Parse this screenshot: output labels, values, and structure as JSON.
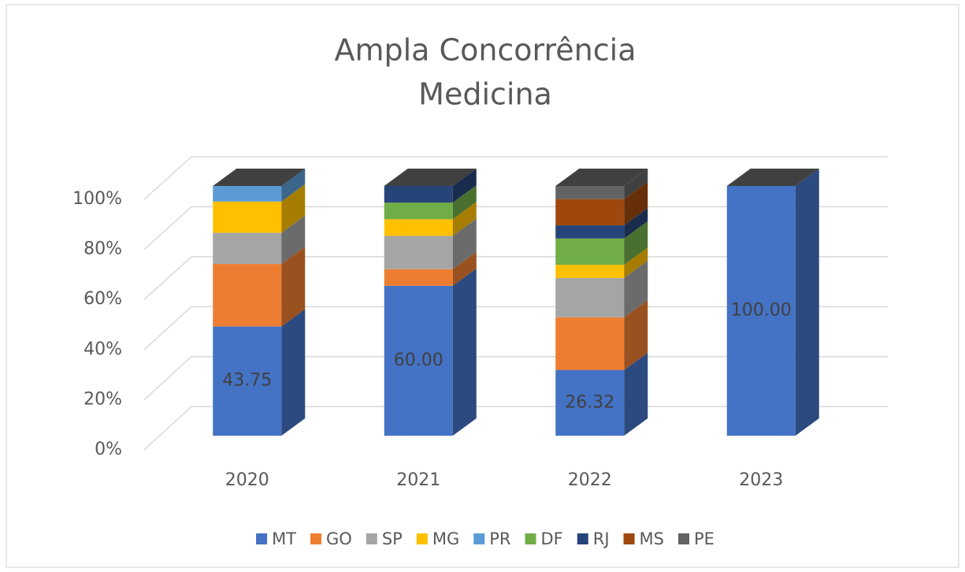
{
  "chart_data": {
    "type": "bar3d_stacked",
    "title": "Ampla Concorrência",
    "subtitle": "Medicina",
    "categories": [
      "2020",
      "2021",
      "2022",
      "2023"
    ],
    "series": [
      {
        "name": "MT",
        "color": "#4472c4",
        "values": [
          43.75,
          60,
          26.32,
          100
        ],
        "value_labels": [
          "43.75",
          "60.00",
          "26.32",
          "100.00"
        ]
      },
      {
        "name": "GO",
        "color": "#ed7d31",
        "values": [
          25,
          6.67,
          21.05,
          0
        ]
      },
      {
        "name": "SP",
        "color": "#a5a5a5",
        "values": [
          12.5,
          13.33,
          15.79,
          0
        ]
      },
      {
        "name": "MG",
        "color": "#ffc000",
        "values": [
          12.5,
          6.67,
          5.26,
          0
        ]
      },
      {
        "name": "PR",
        "color": "#5b9bd5",
        "values": [
          6.25,
          0,
          0,
          0
        ]
      },
      {
        "name": "DF",
        "color": "#70ad47",
        "values": [
          0,
          6.67,
          10.53,
          0
        ]
      },
      {
        "name": "RJ",
        "color": "#264478",
        "values": [
          0,
          6.67,
          5.26,
          0
        ]
      },
      {
        "name": "MS",
        "color": "#9e480e",
        "values": [
          0,
          0,
          10.53,
          0
        ]
      },
      {
        "name": "PE",
        "color": "#636363",
        "values": [
          0,
          0,
          5.26,
          0
        ]
      }
    ],
    "ylim": [
      0,
      100
    ],
    "yticks": [
      {
        "value": 0,
        "label": "0%"
      },
      {
        "value": 20,
        "label": "20%"
      },
      {
        "value": 40,
        "label": "40%"
      },
      {
        "value": 60,
        "label": "60%"
      },
      {
        "value": 80,
        "label": "80%"
      },
      {
        "value": 100,
        "label": "100%"
      }
    ],
    "grid": true,
    "legend": "bottom"
  }
}
